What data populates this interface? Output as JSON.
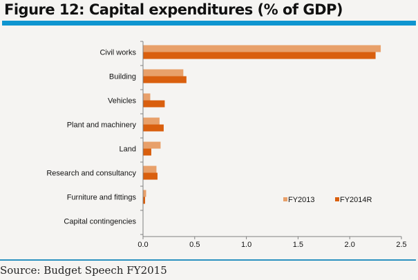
{
  "title": "Figure 12: Capital expenditures (% of GDP)",
  "source": "Source: Budget Speech FY2015",
  "colors": {
    "FY2013": "#e8a06a",
    "FY2014R": "#d95f0e",
    "axis": "#808080",
    "rule": "#0e95d0"
  },
  "chart_data": {
    "type": "bar",
    "orientation": "horizontal",
    "title": "Figure 12: Capital expenditures (% of GDP)",
    "xlabel": "",
    "ylabel": "",
    "xlim": [
      0,
      2.5
    ],
    "xticks": [
      "0.0",
      "0.5",
      "1.0",
      "1.5",
      "2.0",
      "2.5"
    ],
    "grid": false,
    "legend_position": "bottom-right",
    "categories": [
      "Civil works",
      "Building",
      "Vehicles",
      "Plant and machinery",
      "Land",
      "Research and consultancy",
      "Furniture and fittings",
      "Capital contingencies"
    ],
    "series": [
      {
        "name": "FY2013",
        "values": [
          2.3,
          0.39,
          0.07,
          0.16,
          0.17,
          0.13,
          0.03,
          0.0
        ]
      },
      {
        "name": "FY2014R",
        "values": [
          2.25,
          0.42,
          0.21,
          0.2,
          0.08,
          0.14,
          0.02,
          0.0
        ]
      }
    ]
  }
}
